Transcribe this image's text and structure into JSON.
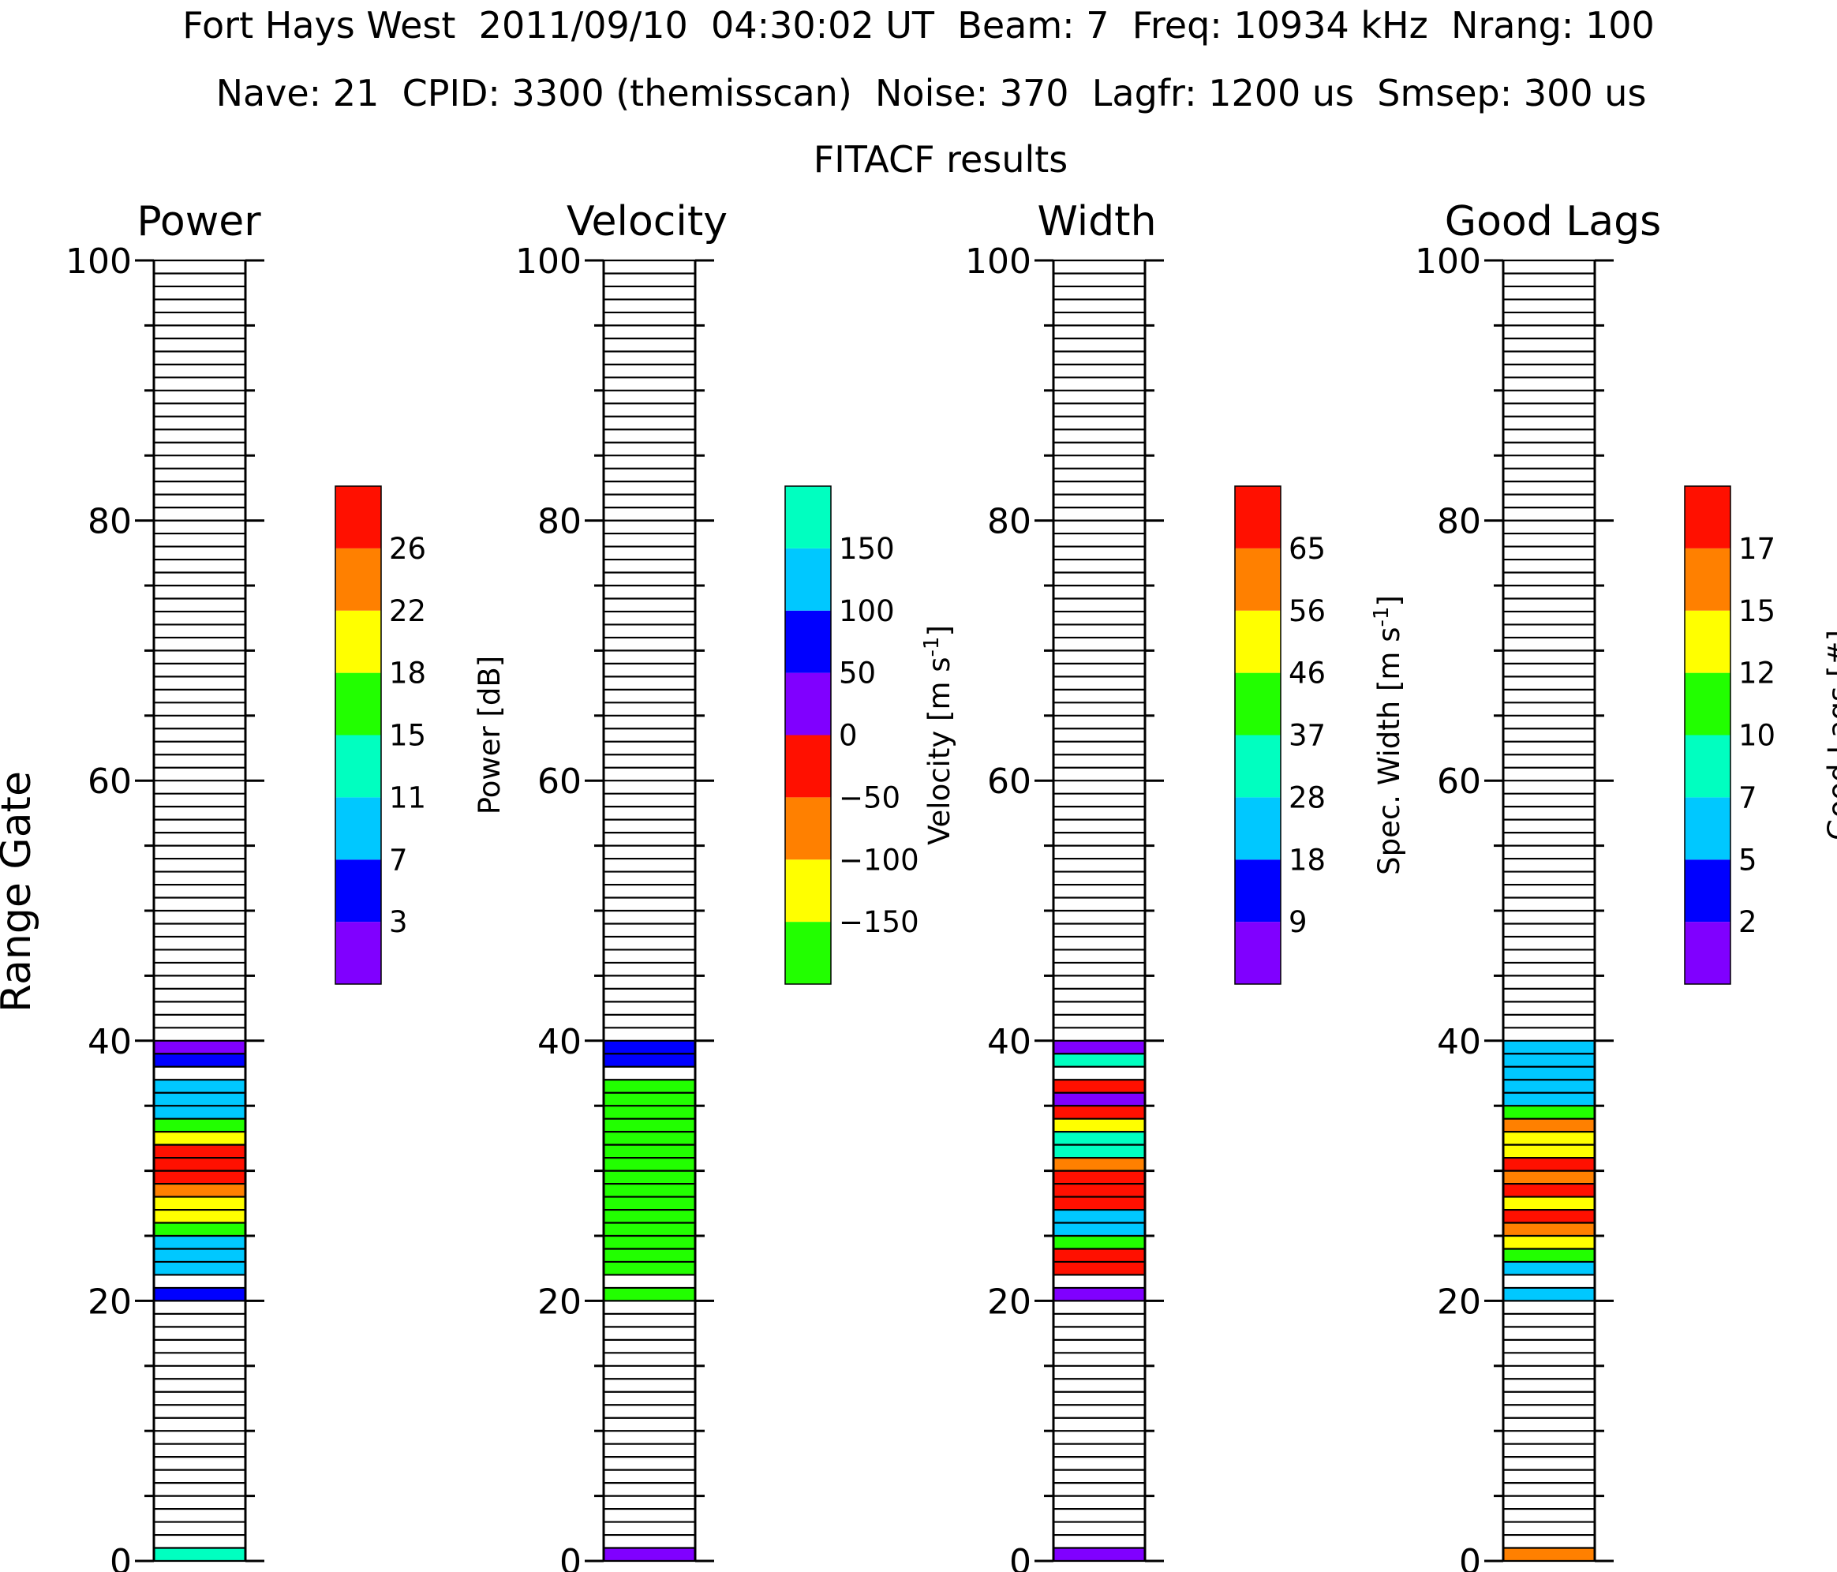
{
  "header": {
    "line1": "Fort Hays West  2011/09/10  04:30:02 UT  Beam: 7  Freq: 10934 kHz  Nrang: 100",
    "line2": "Nave: 21  CPID: 3300 (themisscan)  Noise: 370  Lagfr: 1200 us  Smsep: 300 us",
    "line3": "FITACF results"
  },
  "colors": {
    "purple": "#8000ff",
    "blue": "#0000ff",
    "sky": "#00c8ff",
    "aqua": "#00ffc0",
    "green": "#22ff00",
    "yellow": "#ffff00",
    "orange": "#ff8000",
    "red": "#ff1000"
  },
  "chart_data": [
    {
      "type": "heatmap",
      "title": "Power",
      "ylabel": "Range Gate",
      "ylim": [
        0,
        100
      ],
      "yticks": [
        "0",
        "20",
        "40",
        "60",
        "80",
        "100"
      ],
      "colorbar": {
        "label": "Power",
        "unit": "[dB]",
        "colors": [
          "purple",
          "blue",
          "sky",
          "aqua",
          "green",
          "yellow",
          "orange",
          "red"
        ],
        "ticks": [
          "3",
          "7",
          "11",
          "15",
          "18",
          "22",
          "26"
        ]
      },
      "gates": [
        {
          "gate": 0,
          "color": "aqua"
        },
        {
          "gate": 20,
          "color": "blue"
        },
        {
          "gate": 22,
          "color": "sky"
        },
        {
          "gate": 23,
          "color": "sky"
        },
        {
          "gate": 24,
          "color": "sky"
        },
        {
          "gate": 25,
          "color": "green"
        },
        {
          "gate": 26,
          "color": "yellow"
        },
        {
          "gate": 27,
          "color": "yellow"
        },
        {
          "gate": 28,
          "color": "orange"
        },
        {
          "gate": 29,
          "color": "red"
        },
        {
          "gate": 30,
          "color": "red"
        },
        {
          "gate": 31,
          "color": "red"
        },
        {
          "gate": 32,
          "color": "yellow"
        },
        {
          "gate": 33,
          "color": "green"
        },
        {
          "gate": 34,
          "color": "sky"
        },
        {
          "gate": 35,
          "color": "sky"
        },
        {
          "gate": 36,
          "color": "sky"
        },
        {
          "gate": 38,
          "color": "blue"
        },
        {
          "gate": 39,
          "color": "purple"
        }
      ]
    },
    {
      "type": "heatmap",
      "title": "Velocity",
      "ylim": [
        0,
        100
      ],
      "yticks": [
        "0",
        "20",
        "40",
        "60",
        "80",
        "100"
      ],
      "colorbar": {
        "label": "Velocity",
        "unit": "[m s",
        "unit_sup": "-1",
        "unit_end": "]",
        "colors": [
          "green",
          "yellow",
          "orange",
          "red",
          "purple",
          "blue",
          "sky",
          "aqua"
        ],
        "ticks": [
          "−150",
          "−100",
          "−50",
          "0",
          "50",
          "100",
          "150"
        ]
      },
      "gates": [
        {
          "gate": 0,
          "color": "purple"
        },
        {
          "gate": 20,
          "color": "green"
        },
        {
          "gate": 22,
          "color": "green"
        },
        {
          "gate": 23,
          "color": "green"
        },
        {
          "gate": 24,
          "color": "green"
        },
        {
          "gate": 25,
          "color": "green"
        },
        {
          "gate": 26,
          "color": "green"
        },
        {
          "gate": 27,
          "color": "green"
        },
        {
          "gate": 28,
          "color": "green"
        },
        {
          "gate": 29,
          "color": "green"
        },
        {
          "gate": 30,
          "color": "green"
        },
        {
          "gate": 31,
          "color": "green"
        },
        {
          "gate": 32,
          "color": "green"
        },
        {
          "gate": 33,
          "color": "green"
        },
        {
          "gate": 34,
          "color": "green"
        },
        {
          "gate": 35,
          "color": "green"
        },
        {
          "gate": 36,
          "color": "green"
        },
        {
          "gate": 38,
          "color": "blue"
        },
        {
          "gate": 39,
          "color": "blue"
        }
      ]
    },
    {
      "type": "heatmap",
      "title": "Width",
      "ylim": [
        0,
        100
      ],
      "yticks": [
        "0",
        "20",
        "40",
        "60",
        "80",
        "100"
      ],
      "colorbar": {
        "label": "Spec. Width",
        "unit": "[m s",
        "unit_sup": "-1",
        "unit_end": "]",
        "colors": [
          "purple",
          "blue",
          "sky",
          "aqua",
          "green",
          "yellow",
          "orange",
          "red"
        ],
        "ticks": [
          "9",
          "18",
          "28",
          "37",
          "46",
          "56",
          "65"
        ]
      },
      "gates": [
        {
          "gate": 0,
          "color": "purple"
        },
        {
          "gate": 20,
          "color": "purple"
        },
        {
          "gate": 22,
          "color": "red"
        },
        {
          "gate": 23,
          "color": "red"
        },
        {
          "gate": 24,
          "color": "green"
        },
        {
          "gate": 25,
          "color": "sky"
        },
        {
          "gate": 26,
          "color": "sky"
        },
        {
          "gate": 27,
          "color": "red"
        },
        {
          "gate": 28,
          "color": "red"
        },
        {
          "gate": 29,
          "color": "red"
        },
        {
          "gate": 30,
          "color": "orange"
        },
        {
          "gate": 31,
          "color": "aqua"
        },
        {
          "gate": 32,
          "color": "aqua"
        },
        {
          "gate": 33,
          "color": "yellow"
        },
        {
          "gate": 34,
          "color": "red"
        },
        {
          "gate": 35,
          "color": "purple"
        },
        {
          "gate": 36,
          "color": "red"
        },
        {
          "gate": 38,
          "color": "aqua"
        },
        {
          "gate": 39,
          "color": "purple"
        }
      ]
    },
    {
      "type": "heatmap",
      "title": "Good Lags",
      "ylim": [
        0,
        100
      ],
      "yticks": [
        "0",
        "20",
        "40",
        "60",
        "80",
        "100"
      ],
      "colorbar": {
        "label": "Good Lags",
        "unit": "[#]",
        "colors": [
          "purple",
          "blue",
          "sky",
          "aqua",
          "green",
          "yellow",
          "orange",
          "red"
        ],
        "ticks": [
          "2",
          "5",
          "7",
          "10",
          "12",
          "15",
          "17"
        ]
      },
      "gates": [
        {
          "gate": 0,
          "color": "orange"
        },
        {
          "gate": 20,
          "color": "sky"
        },
        {
          "gate": 22,
          "color": "sky"
        },
        {
          "gate": 23,
          "color": "green"
        },
        {
          "gate": 24,
          "color": "yellow"
        },
        {
          "gate": 25,
          "color": "orange"
        },
        {
          "gate": 26,
          "color": "red"
        },
        {
          "gate": 27,
          "color": "yellow"
        },
        {
          "gate": 28,
          "color": "red"
        },
        {
          "gate": 29,
          "color": "orange"
        },
        {
          "gate": 30,
          "color": "red"
        },
        {
          "gate": 31,
          "color": "yellow"
        },
        {
          "gate": 32,
          "color": "yellow"
        },
        {
          "gate": 33,
          "color": "orange"
        },
        {
          "gate": 34,
          "color": "green"
        },
        {
          "gate": 35,
          "color": "sky"
        },
        {
          "gate": 36,
          "color": "sky"
        },
        {
          "gate": 37,
          "color": "sky"
        },
        {
          "gate": 38,
          "color": "sky"
        },
        {
          "gate": 39,
          "color": "sky"
        }
      ]
    }
  ]
}
